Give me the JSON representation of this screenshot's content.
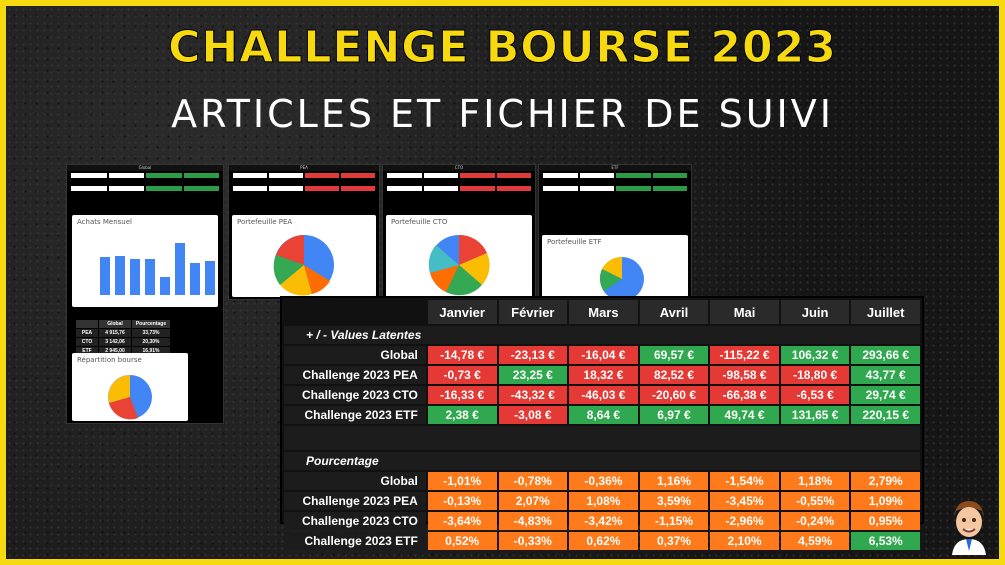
{
  "header": {
    "title": "CHALLENGE BOURSE 2023",
    "subtitle": "ARTICLES ET FICHIER DE SUIVI"
  },
  "thumbnails": {
    "global": {
      "header": "Global",
      "chart_title": "Achats Mensuel",
      "pie_title": "Répartition bourse",
      "rows": [
        [
          "PEA",
          "4 915,76",
          "33,73%"
        ],
        [
          "CTO",
          "3 142,06",
          "20,30%"
        ],
        [
          "ETF",
          "2 945,00",
          "16,91%"
        ]
      ],
      "table_header": [
        "",
        "Global",
        "Pourcentage"
      ]
    },
    "pea": {
      "header": "PEA",
      "chart_title": "Portefeuille PEA"
    },
    "cto": {
      "header": "CTO",
      "chart_title": "Portefeuille CTO"
    },
    "etf": {
      "header": "ETF",
      "chart_title": "Portefeuille ETF"
    }
  },
  "table": {
    "months": [
      "Janvier",
      "Février",
      "Mars",
      "Avril",
      "Mai",
      "Juin",
      "Juillet"
    ],
    "section1": "+ / - Values Latentes",
    "section2": "Pourcentage",
    "latentes": [
      {
        "label": "Global",
        "values": [
          "-14,78 €",
          "-23,13 €",
          "-16,04 €",
          "69,57 €",
          "-115,22 €",
          "106,32 €",
          "293,66 €"
        ],
        "signs": [
          "n",
          "n",
          "n",
          "p",
          "n",
          "p",
          "p"
        ]
      },
      {
        "label": "Challenge 2023 PEA",
        "values": [
          "-0,73 €",
          "23,25 €",
          "18,32 €",
          "82,52 €",
          "-98,58 €",
          "-18,80 €",
          "43,77 €"
        ],
        "signs": [
          "n",
          "p",
          "n",
          "n",
          "n",
          "n",
          "p"
        ]
      },
      {
        "label": "Challenge 2023 CTO",
        "values": [
          "-16,33 €",
          "-43,32 €",
          "-46,03 €",
          "-20,60 €",
          "-66,38 €",
          "-6,53 €",
          "29,74 €"
        ],
        "signs": [
          "n",
          "n",
          "n",
          "n",
          "n",
          "n",
          "p"
        ]
      },
      {
        "label": "Challenge 2023 ETF",
        "values": [
          "2,38 €",
          "-3,08 €",
          "8,64 €",
          "6,97 €",
          "49,74 €",
          "131,65 €",
          "220,15 €"
        ],
        "signs": [
          "p",
          "n",
          "p",
          "p",
          "p",
          "p",
          "p"
        ]
      }
    ],
    "pourcentage": [
      {
        "label": "Global",
        "values": [
          "-1,01%",
          "-0,78%",
          "-0,36%",
          "1,16%",
          "-1,54%",
          "1,18%",
          "2,79%"
        ],
        "signs": [
          "o",
          "o",
          "o",
          "o",
          "o",
          "o",
          "o"
        ]
      },
      {
        "label": "Challenge 2023 PEA",
        "values": [
          "-0,13%",
          "2,07%",
          "1,08%",
          "3,59%",
          "-3,45%",
          "-0,55%",
          "1,09%"
        ],
        "signs": [
          "o",
          "o",
          "o",
          "o",
          "o",
          "o",
          "o"
        ]
      },
      {
        "label": "Challenge 2023 CTO",
        "values": [
          "-3,64%",
          "-4,83%",
          "-3,42%",
          "-1,15%",
          "-2,96%",
          "-0,24%",
          "0,95%"
        ],
        "signs": [
          "o",
          "o",
          "o",
          "o",
          "o",
          "o",
          "o"
        ]
      },
      {
        "label": "Challenge 2023 ETF",
        "values": [
          "0,52%",
          "-0,33%",
          "0,62%",
          "0,37%",
          "2,10%",
          "4,59%",
          "6,53%"
        ],
        "signs": [
          "o",
          "o",
          "o",
          "o",
          "o",
          "o",
          "p"
        ]
      }
    ]
  },
  "colors": {
    "accent": "#f6d90f",
    "negative": "#e53935",
    "positive": "#2fa84f",
    "orange": "#ff7a1a"
  }
}
